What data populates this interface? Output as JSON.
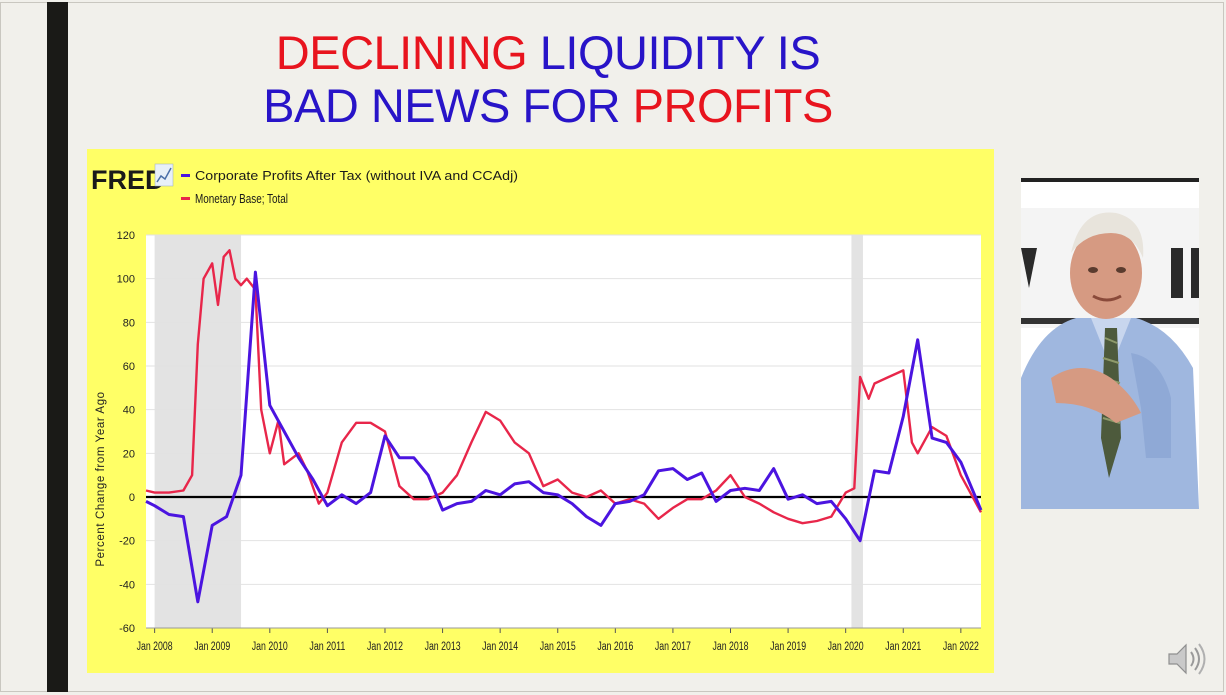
{
  "slide": {
    "title_line1": [
      "DECLINING",
      "LIQUIDITY IS"
    ],
    "title_line2": [
      "BAD NEWS FOR",
      "PROFITS"
    ]
  },
  "colors": {
    "title_red": "#e8141e",
    "title_blue": "#2814c8",
    "panel_bg": "#ffff66",
    "profits_line": "#4b14e0",
    "monetary_line": "#e8264a",
    "recession": "#e3e3e3"
  },
  "chart_data": {
    "type": "line",
    "logo": "FRED",
    "ylabel": "Percent Change from Year Ago",
    "xlabel": "",
    "ylim": [
      -60,
      120
    ],
    "yticks": [
      120,
      100,
      80,
      60,
      40,
      20,
      0,
      -20,
      -40,
      -60
    ],
    "xlim": [
      2007.85,
      2022.35
    ],
    "xtick_labels": [
      "Jan 2008",
      "Jan 2009",
      "Jan 2010",
      "Jan 2011",
      "Jan 2012",
      "Jan 2013",
      "Jan 2014",
      "Jan 2015",
      "Jan 2016",
      "Jan 2017",
      "Jan 2018",
      "Jan 2019",
      "Jan 2020",
      "Jan 2021",
      "Jan 2022"
    ],
    "xtick_values": [
      2008,
      2009,
      2010,
      2011,
      2012,
      2013,
      2014,
      2015,
      2016,
      2017,
      2018,
      2019,
      2020,
      2021,
      2022
    ],
    "recessions": [
      [
        2008.0,
        2009.5
      ],
      [
        2020.1,
        2020.3
      ]
    ],
    "zero_line": true,
    "series": [
      {
        "name": "Corporate Profits After Tax (without IVA and CCAdj)",
        "color": "#4b14e0",
        "x": [
          2007.85,
          2008.0,
          2008.25,
          2008.5,
          2008.75,
          2009.0,
          2009.25,
          2009.5,
          2009.75,
          2010.0,
          2010.25,
          2010.5,
          2010.75,
          2011.0,
          2011.25,
          2011.5,
          2011.75,
          2012.0,
          2012.25,
          2012.5,
          2012.75,
          2013.0,
          2013.25,
          2013.5,
          2013.75,
          2014.0,
          2014.25,
          2014.5,
          2014.75,
          2015.0,
          2015.25,
          2015.5,
          2015.75,
          2016.0,
          2016.25,
          2016.5,
          2016.75,
          2017.0,
          2017.25,
          2017.5,
          2017.75,
          2018.0,
          2018.25,
          2018.5,
          2018.75,
          2019.0,
          2019.25,
          2019.5,
          2019.75,
          2020.0,
          2020.25,
          2020.5,
          2020.75,
          2021.0,
          2021.25,
          2021.5,
          2021.75,
          2022.0,
          2022.35
        ],
        "values": [
          -2,
          -4,
          -8,
          -9,
          -48,
          -13,
          -9,
          10,
          103,
          42,
          30,
          18,
          8,
          -4,
          1,
          -3,
          2,
          28,
          18,
          18,
          10,
          -6,
          -3,
          -2,
          3,
          1,
          6,
          7,
          2,
          1,
          -3,
          -9,
          -13,
          -3,
          -2,
          1,
          12,
          13,
          8,
          11,
          -2,
          3,
          4,
          3,
          13,
          -1,
          1,
          -3,
          -2,
          -10,
          -20,
          12,
          11,
          37,
          72,
          27,
          25,
          16,
          -6
        ]
      },
      {
        "name": "Monetary Base; Total",
        "color": "#e8264a",
        "x": [
          2007.85,
          2008.0,
          2008.25,
          2008.5,
          2008.65,
          2008.75,
          2008.85,
          2009.0,
          2009.1,
          2009.2,
          2009.3,
          2009.4,
          2009.5,
          2009.6,
          2009.75,
          2009.85,
          2010.0,
          2010.15,
          2010.25,
          2010.5,
          2010.65,
          2010.85,
          2011.0,
          2011.25,
          2011.5,
          2011.75,
          2012.0,
          2012.25,
          2012.5,
          2012.75,
          2013.0,
          2013.25,
          2013.5,
          2013.75,
          2014.0,
          2014.25,
          2014.5,
          2014.75,
          2015.0,
          2015.25,
          2015.5,
          2015.75,
          2016.0,
          2016.25,
          2016.5,
          2016.75,
          2017.0,
          2017.25,
          2017.5,
          2017.75,
          2018.0,
          2018.25,
          2018.5,
          2018.75,
          2019.0,
          2019.25,
          2019.5,
          2019.75,
          2020.0,
          2020.15,
          2020.25,
          2020.4,
          2020.5,
          2020.75,
          2021.0,
          2021.15,
          2021.25,
          2021.5,
          2021.75,
          2022.0,
          2022.35
        ],
        "values": [
          3,
          2,
          2,
          3,
          10,
          70,
          100,
          107,
          88,
          110,
          113,
          100,
          97,
          100,
          95,
          40,
          20,
          35,
          15,
          20,
          12,
          -3,
          2,
          25,
          34,
          34,
          30,
          5,
          -1,
          -1,
          2,
          10,
          25,
          39,
          35,
          25,
          20,
          5,
          8,
          2,
          0,
          3,
          -3,
          -1,
          -3,
          -10,
          -5,
          -1,
          -1,
          3,
          10,
          0,
          -3,
          -7,
          -10,
          -12,
          -11,
          -9,
          2,
          4,
          55,
          45,
          52,
          55,
          58,
          25,
          20,
          32,
          28,
          10,
          -7
        ]
      }
    ]
  }
}
